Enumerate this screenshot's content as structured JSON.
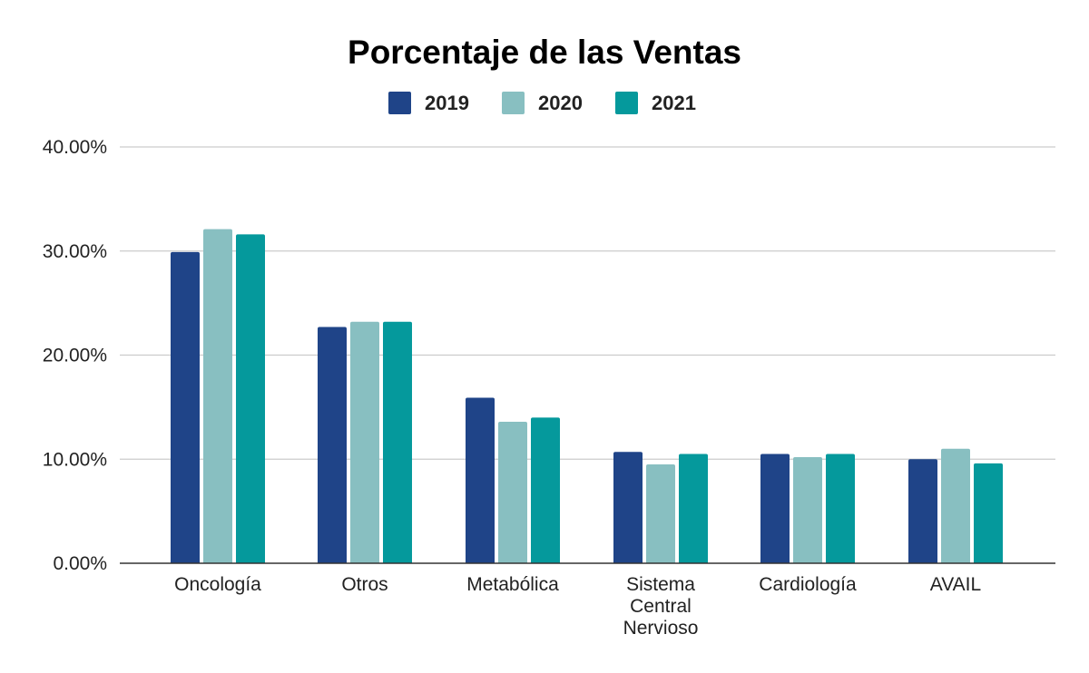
{
  "chart_data": {
    "type": "bar",
    "title": "Porcentaje de las Ventas",
    "xlabel": "",
    "ylabel": "",
    "categories": [
      [
        "Oncología"
      ],
      [
        "Otros"
      ],
      [
        "Metabólica"
      ],
      [
        "Sistema",
        "Central",
        "Nervioso"
      ],
      [
        "Cardiología"
      ],
      [
        "AVAIL"
      ]
    ],
    "series": [
      {
        "name": "2019",
        "color": "#1f4488",
        "values": [
          29.9,
          22.7,
          15.9,
          10.7,
          10.5,
          10.0
        ]
      },
      {
        "name": "2020",
        "color": "#88bfc1",
        "values": [
          32.1,
          23.2,
          13.6,
          9.5,
          10.2,
          11.0
        ]
      },
      {
        "name": "2021",
        "color": "#05999c",
        "values": [
          31.6,
          23.2,
          14.0,
          10.5,
          10.5,
          9.6
        ]
      }
    ],
    "ylim": [
      0,
      40
    ],
    "yticks": [
      "0.00%",
      "10.00%",
      "20.00%",
      "30.00%",
      "40.00%"
    ],
    "grid": true,
    "legend_position": "top"
  }
}
